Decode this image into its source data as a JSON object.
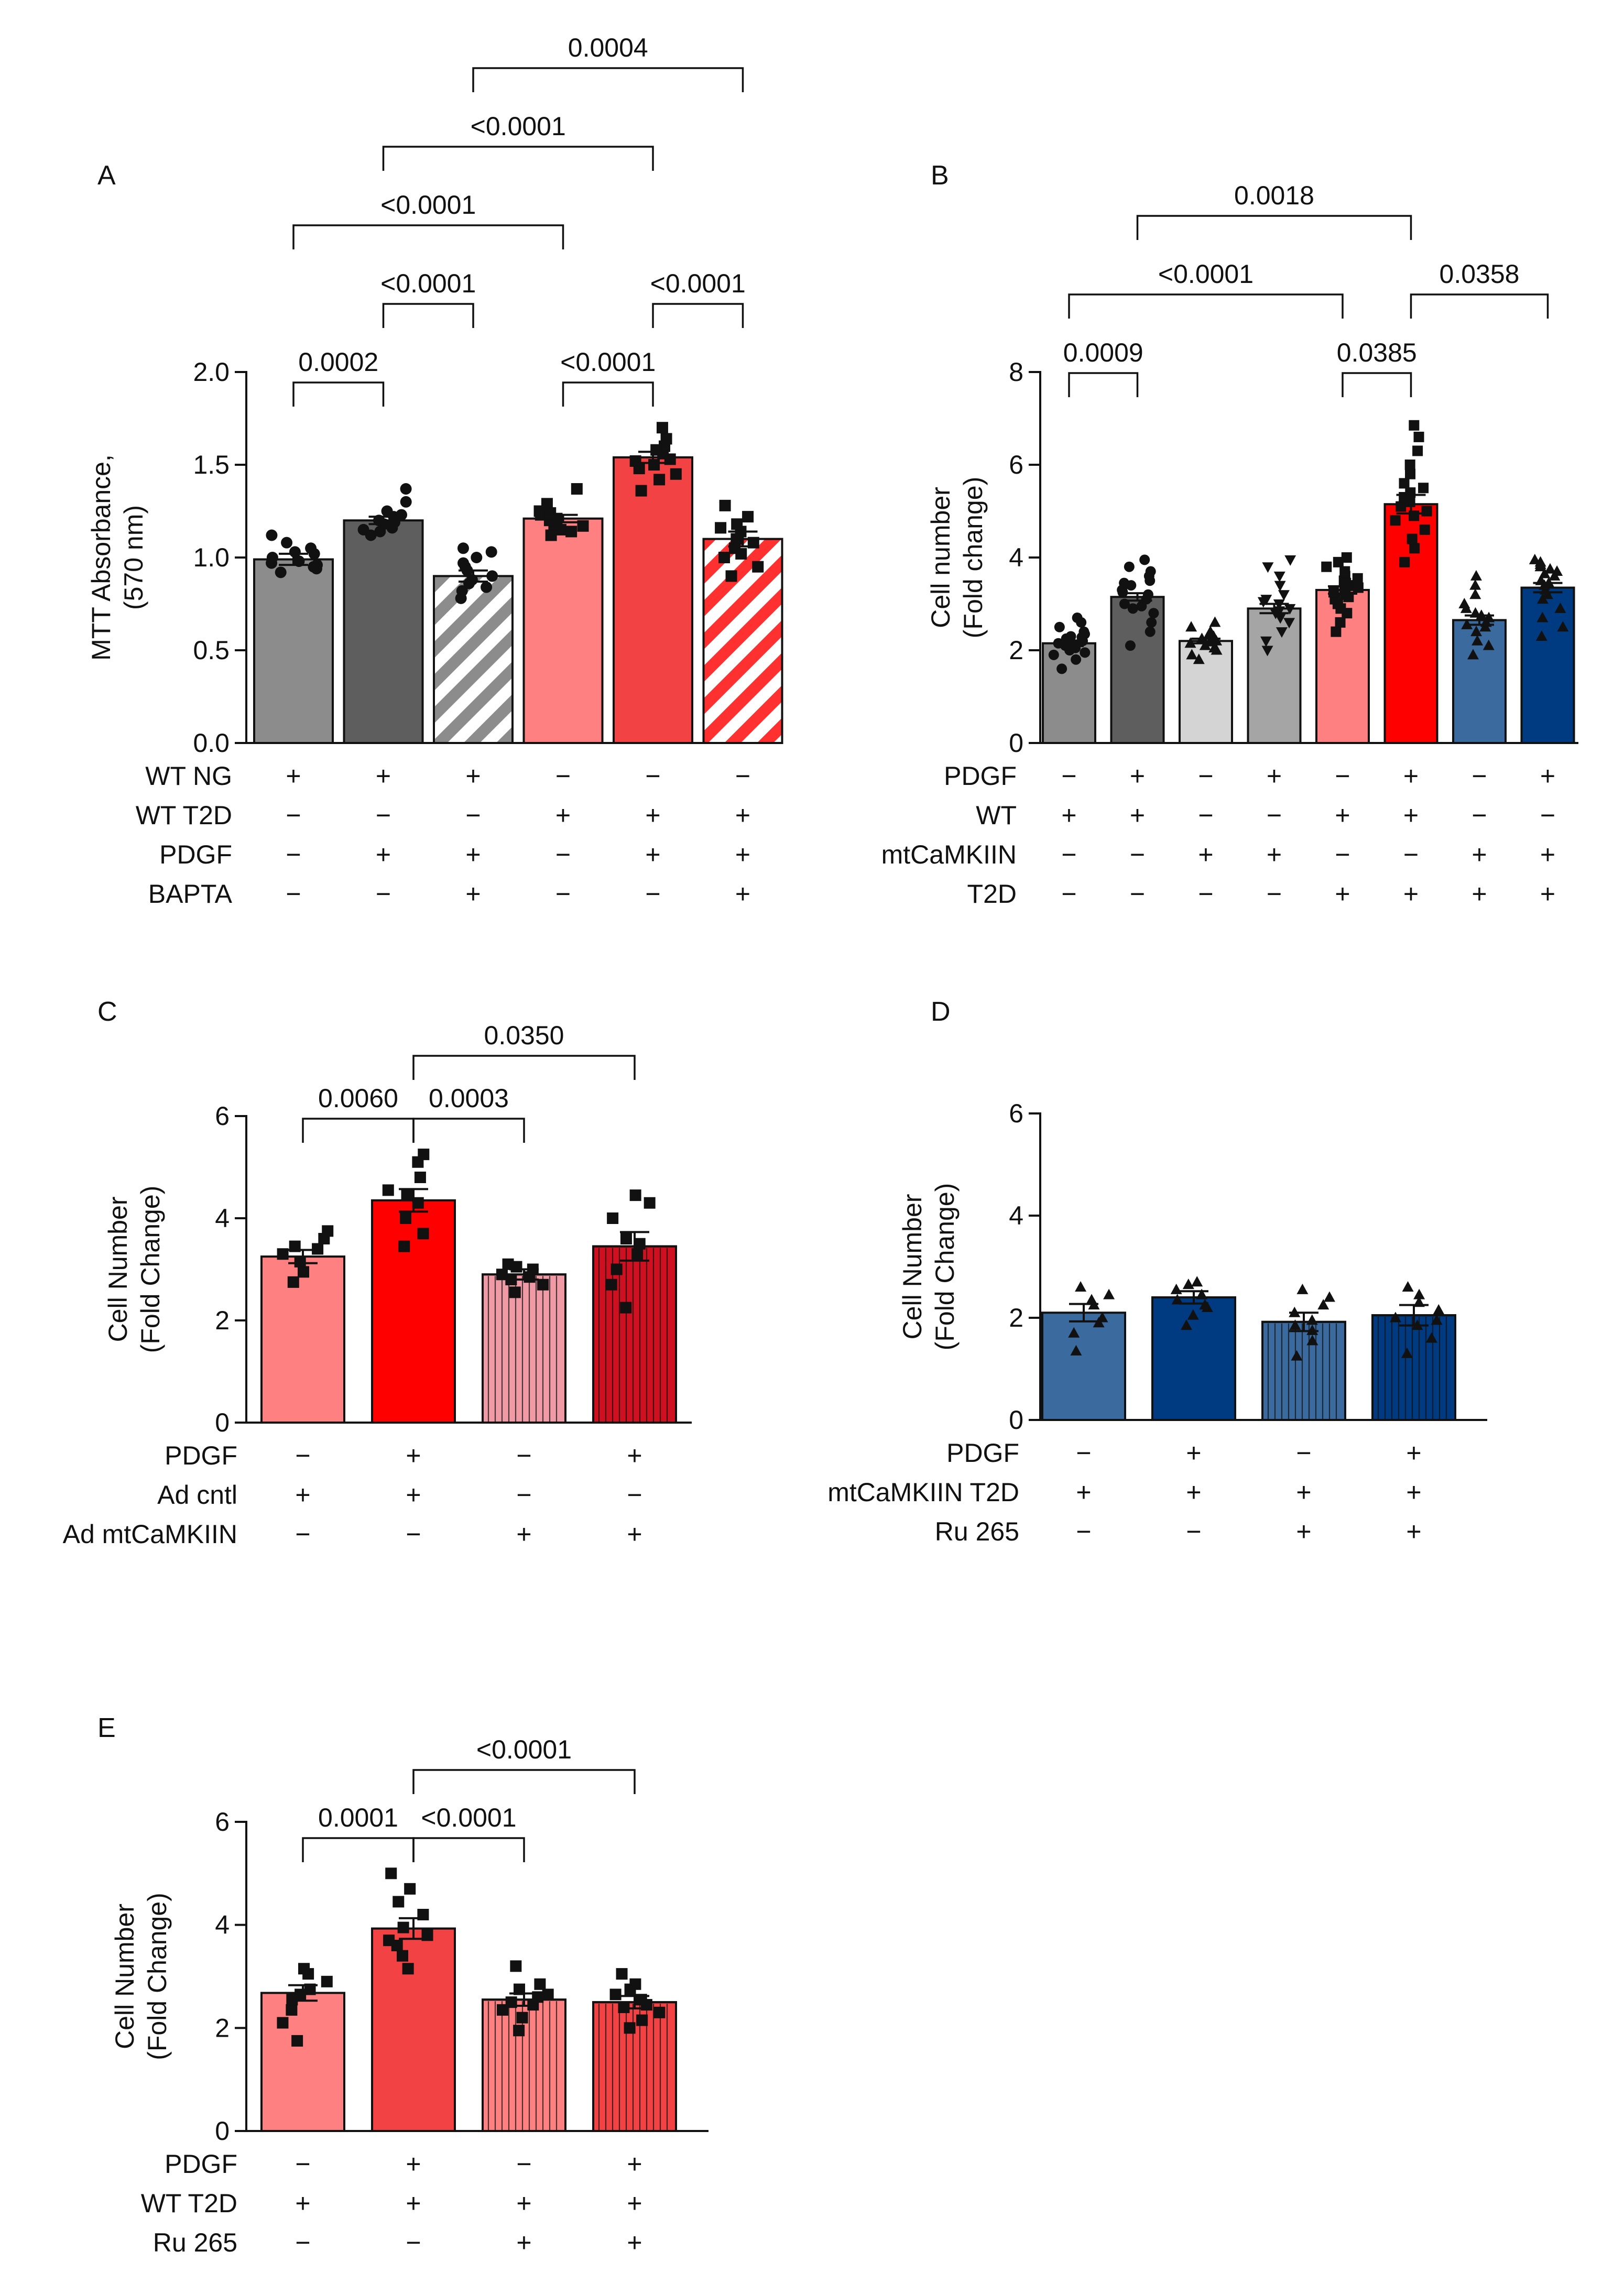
{
  "colors": {
    "wt_ng_gray": "#8c8c8c",
    "wt_ng_dark": "#5e5e5e",
    "light_gray": "#d4d4d4",
    "mid_gray": "#a5a5a5",
    "pink": "#ff8080",
    "red_mid": "#f24244",
    "red": "#ff0000",
    "red_dark": "#cf1020",
    "pink_light": "#f09aa6",
    "blue_mid": "#3b6a9e",
    "blue_dark": "#003a80",
    "ink": "#111111"
  },
  "chart_data": [
    {
      "panel": "A",
      "type": "bar",
      "ylabel": "MTT Absorbance,\n(570 nm)",
      "ylim": [
        0,
        2.0
      ],
      "yticks": [
        "0.0",
        "0.5",
        "1.0",
        "1.5",
        "2.0"
      ],
      "bars": [
        {
          "value": 0.99,
          "sem": 0.03,
          "fill": "#8c8c8c",
          "pattern": "solid",
          "marker": "circle",
          "points": [
            0.92,
            0.95,
            0.98,
            1.02,
            0.97,
            1.05,
            1.08,
            1.12,
            1.0,
            0.96,
            0.94,
            1.03
          ]
        },
        {
          "value": 1.2,
          "sem": 0.02,
          "fill": "#5e5e5e",
          "pattern": "solid",
          "marker": "circle",
          "points": [
            1.12,
            1.15,
            1.18,
            1.2,
            1.22,
            1.25,
            1.3,
            1.37,
            1.16,
            1.19,
            1.23,
            1.14
          ]
        },
        {
          "value": 0.9,
          "sem": 0.03,
          "fill": "#8c8c8c",
          "pattern": "hatch-gray",
          "marker": "circle",
          "points": [
            0.78,
            0.82,
            0.86,
            0.9,
            0.93,
            0.97,
            1.0,
            1.03,
            1.05,
            0.88,
            0.84,
            0.95
          ]
        },
        {
          "value": 1.21,
          "sem": 0.02,
          "fill": "#ff8080",
          "pattern": "solid",
          "marker": "square",
          "points": [
            1.12,
            1.15,
            1.18,
            1.21,
            1.23,
            1.25,
            1.29,
            1.37,
            1.17,
            1.2,
            1.14,
            1.24
          ]
        },
        {
          "value": 1.54,
          "sem": 0.03,
          "fill": "#f24244",
          "pattern": "solid",
          "marker": "square",
          "points": [
            1.36,
            1.42,
            1.48,
            1.53,
            1.56,
            1.6,
            1.64,
            1.7,
            1.5,
            1.45,
            1.58,
            1.52
          ]
        },
        {
          "value": 1.1,
          "sem": 0.04,
          "fill": "#ff3030",
          "pattern": "hatch-red",
          "marker": "square",
          "points": [
            0.9,
            0.95,
            1.0,
            1.05,
            1.1,
            1.14,
            1.18,
            1.22,
            1.28,
            1.08,
            1.02,
            1.16
          ]
        }
      ],
      "conditions": [
        {
          "label": "WT NG",
          "marks": [
            "+",
            "+",
            "+",
            "−",
            "−",
            "−"
          ]
        },
        {
          "label": "WT T2D",
          "marks": [
            "−",
            "−",
            "−",
            "+",
            "+",
            "+"
          ]
        },
        {
          "label": "PDGF",
          "marks": [
            "−",
            "+",
            "+",
            "−",
            "+",
            "+"
          ]
        },
        {
          "label": "BAPTA",
          "marks": [
            "−",
            "−",
            "+",
            "−",
            "−",
            "+"
          ]
        }
      ],
      "comparisons": [
        {
          "from": 0,
          "to": 1,
          "label": "0.0002",
          "level": 0
        },
        {
          "from": 3,
          "to": 4,
          "label": "<0.0001",
          "level": 0
        },
        {
          "from": 1,
          "to": 2,
          "label": "<0.0001",
          "level": 1
        },
        {
          "from": 4,
          "to": 5,
          "label": "<0.0001",
          "level": 1
        },
        {
          "from": 0,
          "to": 3,
          "label": "<0.0001",
          "level": 2
        },
        {
          "from": 1,
          "to": 4,
          "label": "<0.0001",
          "level": 3
        },
        {
          "from": 2,
          "to": 5,
          "label": "0.0004",
          "level": 4
        }
      ]
    },
    {
      "panel": "B",
      "type": "bar",
      "ylabel": "Cell number\n(Fold change)",
      "ylim": [
        0,
        8
      ],
      "yticks": [
        "0",
        "2",
        "4",
        "6",
        "8"
      ],
      "bars": [
        {
          "value": 2.15,
          "sem": 0.06,
          "fill": "#8c8c8c",
          "pattern": "solid",
          "marker": "circle",
          "points": [
            1.6,
            1.8,
            1.9,
            2.0,
            2.05,
            2.1,
            2.15,
            2.2,
            2.25,
            2.3,
            2.35,
            2.4,
            2.5,
            2.6,
            2.7,
            1.95,
            2.12,
            2.28
          ]
        },
        {
          "value": 3.15,
          "sem": 0.08,
          "fill": "#5e5e5e",
          "pattern": "solid",
          "marker": "circle",
          "points": [
            2.1,
            2.4,
            2.6,
            2.8,
            2.9,
            3.0,
            3.1,
            3.2,
            3.3,
            3.4,
            3.5,
            3.6,
            3.7,
            3.8,
            3.95,
            3.25,
            2.95,
            3.45
          ]
        },
        {
          "value": 2.2,
          "sem": 0.05,
          "fill": "#d4d4d4",
          "pattern": "solid",
          "marker": "triangle",
          "points": [
            1.8,
            1.9,
            2.0,
            2.1,
            2.15,
            2.2,
            2.25,
            2.3,
            2.4,
            2.5,
            2.6,
            2.05,
            2.35,
            2.18
          ]
        },
        {
          "value": 2.9,
          "sem": 0.1,
          "fill": "#a5a5a5",
          "pattern": "solid",
          "marker": "triangle-down",
          "points": [
            2.0,
            2.2,
            2.4,
            2.6,
            2.7,
            2.8,
            2.9,
            3.0,
            3.1,
            3.2,
            3.4,
            3.6,
            3.8,
            3.95,
            2.85,
            3.05
          ]
        },
        {
          "value": 3.3,
          "sem": 0.08,
          "fill": "#ff8080",
          "pattern": "solid",
          "marker": "square",
          "points": [
            2.4,
            2.6,
            2.8,
            2.9,
            3.0,
            3.1,
            3.2,
            3.3,
            3.4,
            3.5,
            3.6,
            3.7,
            3.8,
            3.9,
            4.0,
            3.25,
            3.45,
            3.15,
            3.55,
            3.35
          ]
        },
        {
          "value": 5.15,
          "sem": 0.2,
          "fill": "#ff0000",
          "pattern": "solid",
          "marker": "square",
          "points": [
            3.9,
            4.2,
            4.4,
            4.6,
            4.8,
            5.0,
            5.1,
            5.2,
            5.4,
            5.6,
            5.8,
            6.0,
            6.3,
            6.6,
            6.85,
            5.3,
            4.9,
            5.5
          ]
        },
        {
          "value": 2.65,
          "sem": 0.1,
          "fill": "#3b6a9e",
          "pattern": "solid",
          "marker": "triangle",
          "points": [
            1.9,
            2.1,
            2.2,
            2.4,
            2.5,
            2.6,
            2.7,
            2.8,
            2.9,
            3.0,
            3.2,
            3.4,
            3.6,
            2.55,
            2.75
          ]
        },
        {
          "value": 3.35,
          "sem": 0.1,
          "fill": "#003a80",
          "pattern": "solid",
          "marker": "triangle",
          "points": [
            2.3,
            2.5,
            2.7,
            2.9,
            3.1,
            3.3,
            3.4,
            3.5,
            3.6,
            3.7,
            3.8,
            3.9,
            3.95,
            3.2,
            3.45,
            3.65,
            3.75,
            3.85
          ]
        }
      ],
      "conditions": [
        {
          "label": "PDGF",
          "marks": [
            "−",
            "+",
            "−",
            "+",
            "−",
            "+",
            "−",
            "+"
          ]
        },
        {
          "label": "WT",
          "marks": [
            "+",
            "+",
            "−",
            "−",
            "+",
            "+",
            "−",
            "−"
          ]
        },
        {
          "label": "mtCaMKIIN",
          "marks": [
            "−",
            "−",
            "+",
            "+",
            "−",
            "−",
            "+",
            "+"
          ]
        },
        {
          "label": "T2D",
          "marks": [
            "−",
            "−",
            "−",
            "−",
            "+",
            "+",
            "+",
            "+"
          ]
        }
      ],
      "comparisons": [
        {
          "from": 0,
          "to": 1,
          "label": "0.0009",
          "level": 0
        },
        {
          "from": 4,
          "to": 5,
          "label": "0.0385",
          "level": 0
        },
        {
          "from": 0,
          "to": 4,
          "label": "<0.0001",
          "level": 1
        },
        {
          "from": 5,
          "to": 7,
          "label": "0.0358",
          "level": 1
        },
        {
          "from": 1,
          "to": 5,
          "label": "0.0018",
          "level": 2
        }
      ]
    },
    {
      "panel": "C",
      "type": "bar",
      "ylabel": "Cell Number\n(Fold Change)",
      "ylim": [
        0,
        6
      ],
      "yticks": [
        "0",
        "2",
        "4",
        "6"
      ],
      "bars": [
        {
          "value": 3.25,
          "sem": 0.13,
          "fill": "#ff8080",
          "pattern": "solid",
          "marker": "square",
          "points": [
            2.75,
            2.95,
            3.15,
            3.3,
            3.45,
            3.6,
            3.75,
            3.4
          ]
        },
        {
          "value": 4.35,
          "sem": 0.22,
          "fill": "#ff0000",
          "pattern": "solid",
          "marker": "square",
          "points": [
            3.45,
            3.7,
            4.0,
            4.3,
            4.55,
            4.8,
            5.1,
            5.25,
            4.45
          ]
        },
        {
          "value": 2.9,
          "sem": 0.1,
          "fill": "#f09aa6",
          "pattern": "vstripe",
          "marker": "square",
          "points": [
            2.55,
            2.7,
            2.8,
            2.9,
            3.0,
            3.05,
            3.1,
            2.85
          ]
        },
        {
          "value": 3.45,
          "sem": 0.28,
          "fill": "#cf1020",
          "pattern": "vstripe",
          "marker": "square",
          "points": [
            2.25,
            2.7,
            3.0,
            3.3,
            3.6,
            4.0,
            4.3,
            4.45,
            3.5
          ]
        }
      ],
      "conditions": [
        {
          "label": "PDGF",
          "marks": [
            "−",
            "+",
            "−",
            "+"
          ]
        },
        {
          "label": "Ad cntl",
          "marks": [
            "+",
            "+",
            "−",
            "−"
          ]
        },
        {
          "label": "Ad mtCaMKIIN",
          "marks": [
            "−",
            "−",
            "+",
            "+"
          ]
        }
      ],
      "comparisons": [
        {
          "from": 0,
          "to": 1,
          "label": "0.0060",
          "level": 0
        },
        {
          "from": 1,
          "to": 2,
          "label": "0.0003",
          "level": 0
        },
        {
          "from": 1,
          "to": 3,
          "label": "0.0350",
          "level": 1
        }
      ]
    },
    {
      "panel": "D",
      "type": "bar",
      "ylabel": "Cell Number\n(Fold Change)",
      "ylim": [
        0,
        6
      ],
      "yticks": [
        "0",
        "2",
        "4",
        "6"
      ],
      "bars": [
        {
          "value": 2.1,
          "sem": 0.17,
          "fill": "#3b6a9e",
          "pattern": "solid",
          "marker": "triangle",
          "points": [
            1.35,
            1.7,
            2.0,
            2.25,
            2.45,
            2.6,
            1.9,
            2.35
          ]
        },
        {
          "value": 2.4,
          "sem": 0.12,
          "fill": "#003a80",
          "pattern": "solid",
          "marker": "triangle",
          "points": [
            1.85,
            2.05,
            2.2,
            2.35,
            2.45,
            2.55,
            2.65,
            2.7,
            2.25
          ]
        },
        {
          "value": 1.92,
          "sem": 0.18,
          "fill": "#3b6a9e",
          "pattern": "vstripe",
          "marker": "triangle",
          "points": [
            1.25,
            1.55,
            1.75,
            1.95,
            2.1,
            2.25,
            2.4,
            2.55,
            1.85
          ]
        },
        {
          "value": 2.05,
          "sem": 0.2,
          "fill": "#003a80",
          "pattern": "vstripe",
          "marker": "triangle",
          "points": [
            1.3,
            1.6,
            1.85,
            2.0,
            2.15,
            2.3,
            2.45,
            2.6,
            1.95
          ]
        }
      ],
      "conditions": [
        {
          "label": "PDGF",
          "marks": [
            "−",
            "+",
            "−",
            "+"
          ]
        },
        {
          "label": "mtCaMKIIN T2D",
          "marks": [
            "+",
            "+",
            "+",
            "+"
          ]
        },
        {
          "label": "Ru 265",
          "marks": [
            "−",
            "−",
            "+",
            "+"
          ]
        }
      ],
      "comparisons": []
    },
    {
      "panel": "E",
      "type": "bar",
      "ylabel": "Cell Number\n(Fold Change)",
      "ylim": [
        0,
        6
      ],
      "yticks": [
        "0",
        "2",
        "4",
        "6"
      ],
      "bars": [
        {
          "value": 2.68,
          "sem": 0.15,
          "fill": "#ff8080",
          "pattern": "solid",
          "marker": "square",
          "points": [
            1.75,
            2.1,
            2.35,
            2.55,
            2.75,
            2.9,
            3.05,
            3.15,
            2.65
          ]
        },
        {
          "value": 3.93,
          "sem": 0.2,
          "fill": "#f24244",
          "pattern": "solid",
          "marker": "square",
          "points": [
            3.15,
            3.4,
            3.6,
            3.8,
            3.95,
            4.2,
            4.45,
            4.7,
            5.0,
            3.7
          ]
        },
        {
          "value": 2.55,
          "sem": 0.12,
          "fill": "#ff8080",
          "pattern": "vstripe",
          "marker": "square",
          "points": [
            1.95,
            2.2,
            2.35,
            2.5,
            2.65,
            2.75,
            2.85,
            3.2,
            2.45,
            2.6
          ]
        },
        {
          "value": 2.5,
          "sem": 0.12,
          "fill": "#f24244",
          "pattern": "vstripe",
          "marker": "square",
          "points": [
            2.0,
            2.15,
            2.3,
            2.45,
            2.55,
            2.65,
            2.75,
            3.05,
            2.4,
            2.85
          ]
        }
      ],
      "conditions": [
        {
          "label": "PDGF",
          "marks": [
            "−",
            "+",
            "−",
            "+"
          ]
        },
        {
          "label": "WT T2D",
          "marks": [
            "+",
            "+",
            "+",
            "+"
          ]
        },
        {
          "label": "Ru 265",
          "marks": [
            "−",
            "−",
            "+",
            "+"
          ]
        }
      ],
      "comparisons": [
        {
          "from": 0,
          "to": 1,
          "label": "0.0001",
          "level": 0
        },
        {
          "from": 1,
          "to": 2,
          "label": "<0.0001",
          "level": 0
        },
        {
          "from": 1,
          "to": 3,
          "label": "<0.0001",
          "level": 1
        }
      ]
    }
  ]
}
